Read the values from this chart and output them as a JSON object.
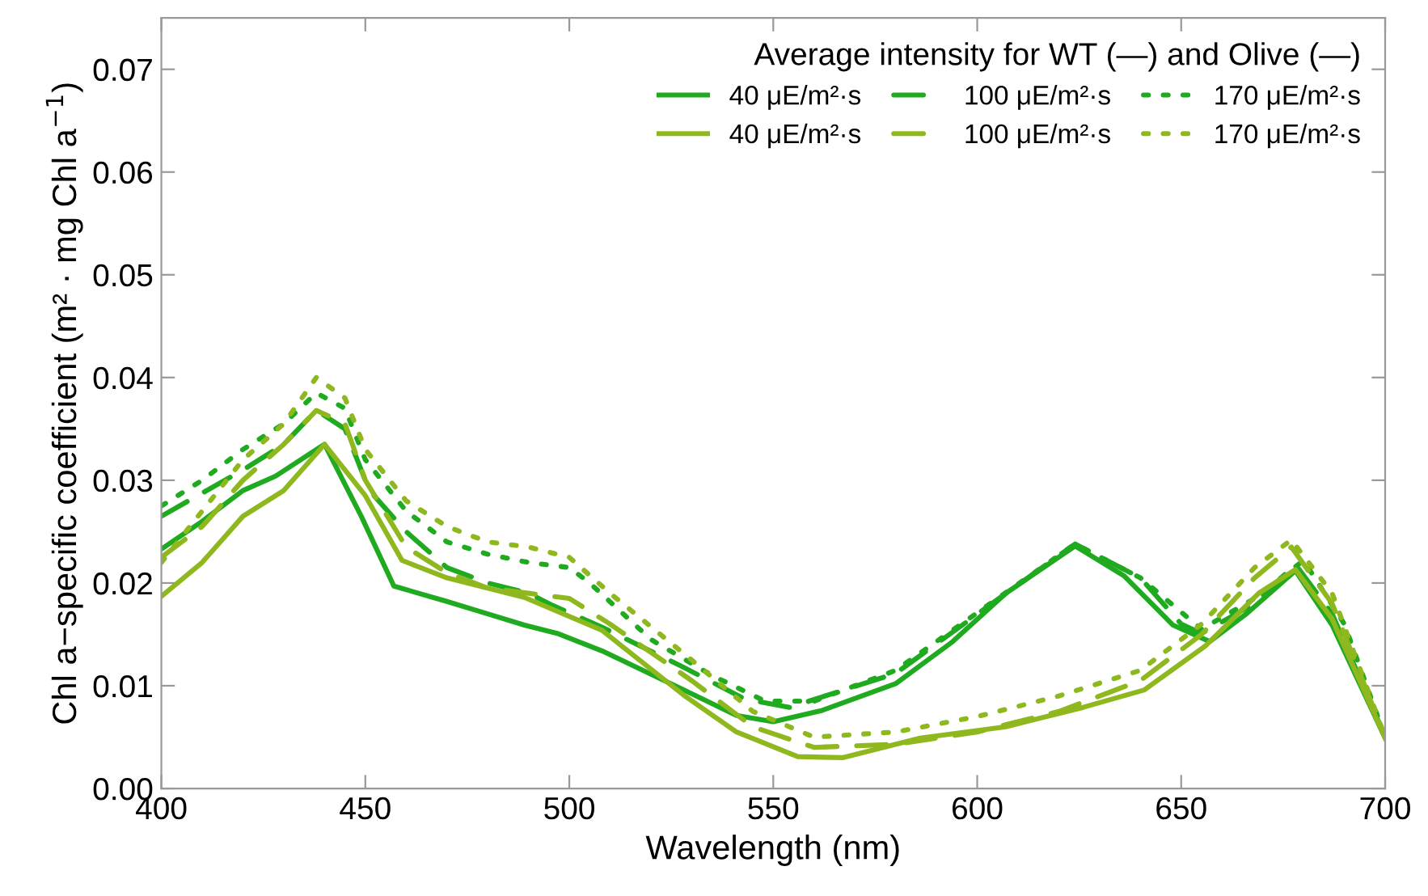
{
  "chart_data": {
    "type": "line",
    "xlabel": "Wavelength (nm)",
    "ylabel": "Chl a−specific coefficient (m² · mg Chl a$^{−1}$)",
    "legend_title": "Average intensity for WT (—) and Olive (—)",
    "legend": "top right",
    "grid": false,
    "xlim": [
      400,
      700
    ],
    "xticks": [
      400,
      450,
      500,
      550,
      600,
      650,
      700
    ],
    "ylim": [
      0,
      0.075
    ],
    "yticks": [
      {
        "value": 0,
        "label": "0.00"
      },
      {
        "value": 0.01,
        "label": "0.01"
      },
      {
        "value": 0.02,
        "label": "0.02"
      },
      {
        "value": 0.03,
        "label": "0.03"
      },
      {
        "value": 0.04,
        "label": "0.04"
      },
      {
        "value": 0.05,
        "label": "0.05"
      },
      {
        "value": 0.06,
        "label": "0.06"
      },
      {
        "value": 0.07,
        "label": "0.07"
      }
    ],
    "series": [
      {
        "name": "40 μE/m²·s",
        "color": "#1faa1f",
        "line_style": "solid",
        "x": [
          400,
          410,
          420,
          428,
          440,
          449,
          457,
          470,
          480,
          489,
          497,
          508,
          528,
          541,
          550,
          562,
          580,
          594,
          607,
          624,
          636,
          648,
          657,
          666,
          678,
          687,
          700
        ],
        "values": [
          0.0233,
          0.026,
          0.029,
          0.0304,
          0.0335,
          0.0265,
          0.0197,
          0.0182,
          0.017,
          0.0159,
          0.0151,
          0.0134,
          0.0096,
          0.0071,
          0.0065,
          0.0076,
          0.0102,
          0.0143,
          0.019,
          0.0236,
          0.0207,
          0.0159,
          0.0143,
          0.017,
          0.0212,
          0.0159,
          0.0049
        ]
      },
      {
        "name": "100 μE/m²·s",
        "color": "#1faa1f",
        "line_style": "dashed",
        "x": [
          400,
          420,
          430,
          438,
          445,
          451,
          460,
          470,
          480,
          490,
          496,
          508,
          528,
          543,
          554,
          580,
          605,
          624,
          640,
          650,
          655,
          668,
          678,
          687,
          700
        ],
        "values": [
          0.0265,
          0.031,
          0.0335,
          0.0368,
          0.035,
          0.029,
          0.025,
          0.0215,
          0.02,
          0.019,
          0.0178,
          0.0157,
          0.0118,
          0.0087,
          0.0079,
          0.0112,
          0.0184,
          0.0238,
          0.0205,
          0.016,
          0.0151,
          0.018,
          0.0218,
          0.017,
          0.005
        ]
      },
      {
        "name": "170 μE/m²·s",
        "color": "#1faa1f",
        "line_style": "dotted",
        "x": [
          400,
          410,
          420,
          430,
          438,
          445,
          450,
          460,
          470,
          480,
          490,
          500,
          505,
          520,
          535,
          548,
          560,
          580,
          605,
          624,
          640,
          655,
          668,
          680,
          690,
          700
        ],
        "values": [
          0.0275,
          0.03,
          0.033,
          0.0355,
          0.0385,
          0.037,
          0.032,
          0.027,
          0.024,
          0.0228,
          0.022,
          0.0215,
          0.02,
          0.0145,
          0.011,
          0.0085,
          0.0085,
          0.0115,
          0.0185,
          0.0238,
          0.0205,
          0.0155,
          0.0185,
          0.0222,
          0.016,
          0.005
        ]
      },
      {
        "name": "40 μE/m²·s",
        "color": "#8fb81f",
        "line_style": "solid",
        "x": [
          400,
          410,
          420,
          430,
          440,
          450,
          459,
          470,
          480,
          489,
          508,
          528,
          541,
          556,
          567,
          586,
          607,
          626,
          641,
          656,
          669,
          678,
          687,
          700
        ],
        "values": [
          0.0187,
          0.022,
          0.0265,
          0.029,
          0.0335,
          0.0285,
          0.0222,
          0.0205,
          0.0195,
          0.0186,
          0.0154,
          0.0091,
          0.0055,
          0.0031,
          0.003,
          0.0049,
          0.006,
          0.0079,
          0.0096,
          0.0139,
          0.019,
          0.0213,
          0.0165,
          0.0049
        ]
      },
      {
        "name": "100 μE/m²·s",
        "color": "#8fb81f",
        "line_style": "dashed",
        "x": [
          400,
          410,
          420,
          430,
          438,
          445,
          450,
          460,
          470,
          480,
          490,
          500,
          510,
          530,
          545,
          560,
          580,
          600,
          620,
          640,
          655,
          668,
          677,
          687,
          700
        ],
        "values": [
          0.0225,
          0.0255,
          0.03,
          0.0335,
          0.0368,
          0.0355,
          0.03,
          0.0235,
          0.021,
          0.0195,
          0.019,
          0.0185,
          0.016,
          0.0105,
          0.006,
          0.004,
          0.0043,
          0.0055,
          0.0075,
          0.0105,
          0.015,
          0.0205,
          0.0235,
          0.018,
          0.005
        ]
      },
      {
        "name": "170 μE/m²·s",
        "color": "#8fb81f",
        "line_style": "dotted",
        "x": [
          400,
          410,
          420,
          430,
          438,
          445,
          450,
          460,
          470,
          480,
          490,
          500,
          510,
          530,
          545,
          560,
          580,
          600,
          620,
          640,
          655,
          668,
          677,
          687,
          700
        ],
        "values": [
          0.022,
          0.027,
          0.032,
          0.0355,
          0.04,
          0.038,
          0.033,
          0.028,
          0.0255,
          0.024,
          0.0235,
          0.0225,
          0.019,
          0.0125,
          0.0075,
          0.005,
          0.0055,
          0.007,
          0.009,
          0.0115,
          0.016,
          0.0215,
          0.0242,
          0.019,
          0.005
        ]
      }
    ]
  }
}
